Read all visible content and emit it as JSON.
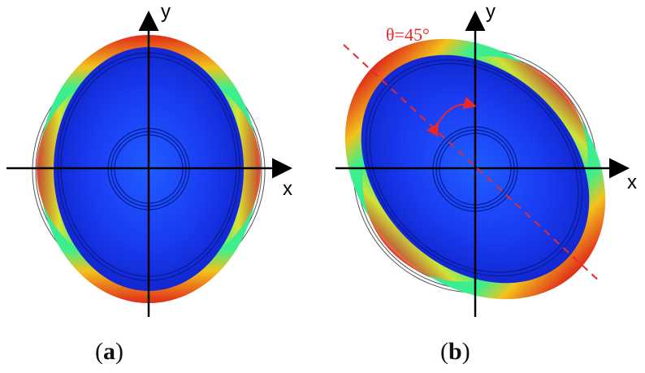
{
  "panel_a": {
    "caption_open": "(",
    "caption_letter": "a",
    "caption_close": ")",
    "axis_x_label": "x",
    "axis_y_label": "y"
  },
  "panel_b": {
    "caption_open": "(",
    "caption_letter": "b",
    "caption_close": ")",
    "axis_x_label": "x",
    "axis_y_label": "y",
    "angle_label": "θ=45°",
    "angle_deg": 45
  },
  "colors": {
    "axis": "#000000",
    "deformed_core": "#1a3cff",
    "core_highlight": "#5aa8ff",
    "rim_green": "#3ef08a",
    "rim_yellow": "#f2f227",
    "rim_red": "#e8281e",
    "reference_ring": "#555555",
    "angle_annotation": "#e8282b"
  }
}
